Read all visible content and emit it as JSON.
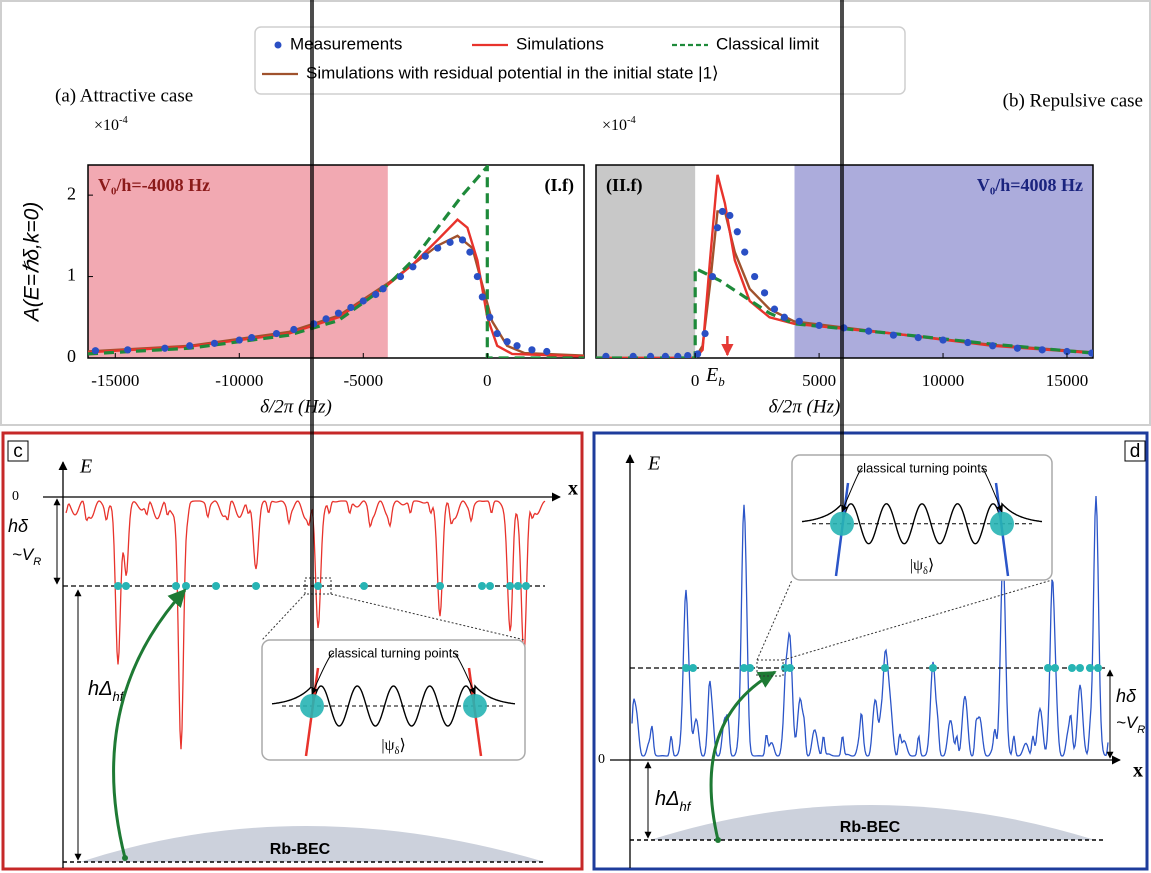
{
  "chart_data": [
    {
      "type": "line",
      "title": "(a) Attractive case",
      "xlabel": "δ/2π (Hz)",
      "ylabel": "A(E=ℏδ,k=0)",
      "y_scale_label": {
        "text": "×10",
        "sup": "-4"
      },
      "xlim": [
        -16100,
        3900
      ],
      "ylim": [
        0,
        2.37
      ],
      "xticks": [
        -15000,
        -10000,
        -5000,
        0
      ],
      "yticks": [
        0,
        1,
        2
      ],
      "regions": [
        {
          "from": -16100,
          "to": -4008,
          "color": "#f2a9b2",
          "label": "V₀/h=-4008 Hz",
          "label_color": "#8b1a1a"
        },
        {
          "from": -4008,
          "to": 3900,
          "color": "#ffffff",
          "label": "(I.f)",
          "label_color": "#000000"
        }
      ],
      "series": [
        {
          "name": "Measurements",
          "color": "#2a4fc4",
          "mode": "markers",
          "x": [
            -15800,
            -14500,
            -13000,
            -12000,
            -11000,
            -10000,
            -9500,
            -8500,
            -7800,
            -7000,
            -6500,
            -6000,
            -5500,
            -5000,
            -4500,
            -4200,
            -3500,
            -3000,
            -2500,
            -2000,
            -1500,
            -1000,
            -700,
            -400,
            -200,
            100,
            400,
            800,
            1200,
            1800,
            2400
          ],
          "values": [
            0.09,
            0.1,
            0.12,
            0.15,
            0.18,
            0.22,
            0.25,
            0.3,
            0.35,
            0.42,
            0.48,
            0.55,
            0.62,
            0.7,
            0.78,
            0.85,
            1.0,
            1.12,
            1.25,
            1.35,
            1.42,
            1.45,
            1.3,
            1.0,
            0.75,
            0.5,
            0.3,
            0.2,
            0.15,
            0.1,
            0.08
          ]
        },
        {
          "name": "Simulations",
          "color": "#e8332c",
          "mode": "line",
          "x": [
            -16100,
            -12000,
            -8000,
            -6000,
            -4000,
            -3000,
            -2000,
            -1200,
            -800,
            -400,
            0,
            400,
            1000,
            3900
          ],
          "values": [
            0.07,
            0.14,
            0.3,
            0.5,
            0.9,
            1.15,
            1.45,
            1.7,
            1.6,
            1.2,
            0.5,
            0.15,
            0.05,
            0.02
          ]
        },
        {
          "name": "Classical limit",
          "color": "#1e8a3a",
          "mode": "dashed",
          "x": [
            -16100,
            -12000,
            -8000,
            -6000,
            -4000,
            -3000,
            -2000,
            -1000,
            0,
            0,
            3900
          ],
          "values": [
            0.05,
            0.12,
            0.28,
            0.46,
            0.9,
            1.2,
            1.6,
            2.0,
            2.35,
            0,
            0
          ]
        },
        {
          "name": "Simulations with residual potential in the initial state |1⟩",
          "color": "#a0522d",
          "mode": "line",
          "x": [
            -16100,
            -12000,
            -8000,
            -6000,
            -4000,
            -3000,
            -2000,
            -1200,
            -600,
            -200,
            200,
            800,
            1500,
            3900
          ],
          "values": [
            0.08,
            0.15,
            0.32,
            0.52,
            0.92,
            1.15,
            1.38,
            1.5,
            1.35,
            0.9,
            0.45,
            0.15,
            0.06,
            0.03
          ]
        }
      ]
    },
    {
      "type": "line",
      "title": "(b) Repulsive case",
      "xlabel": "δ/2π (Hz)",
      "y_scale_label": {
        "text": "×10",
        "sup": "-4"
      },
      "xlim": [
        -4000,
        16050
      ],
      "ylim": [
        0,
        2.37
      ],
      "xticks": [
        0,
        5000,
        10000,
        15000
      ],
      "regions": [
        {
          "from": -4000,
          "to": 0,
          "color": "#c8c8c8",
          "label": "(II.f)",
          "label_color": "#000000"
        },
        {
          "from": 4008,
          "to": 16050,
          "color": "#acacdc",
          "label": "V₀/h=4008 Hz",
          "label_color": "#1a237e"
        }
      ],
      "annotations": [
        {
          "x": 1300,
          "text": "E",
          "sub": "b",
          "color": "#e53935"
        }
      ],
      "series": [
        {
          "name": "Measurements",
          "color": "#2a4fc4",
          "mode": "markers",
          "x": [
            -3600,
            -2500,
            -1800,
            -1200,
            -700,
            -300,
            100,
            400,
            700,
            900,
            1100,
            1400,
            1700,
            2000,
            2400,
            2800,
            3200,
            3600,
            4200,
            5000,
            6000,
            7000,
            8000,
            9000,
            10000,
            11000,
            12000,
            13000,
            14000,
            15000,
            16000
          ],
          "values": [
            0.02,
            0.02,
            0.02,
            0.02,
            0.02,
            0.03,
            0.05,
            0.3,
            1.0,
            1.6,
            1.8,
            1.75,
            1.55,
            1.3,
            1.0,
            0.8,
            0.6,
            0.5,
            0.45,
            0.4,
            0.37,
            0.33,
            0.28,
            0.25,
            0.22,
            0.19,
            0.15,
            0.12,
            0.1,
            0.08,
            0.06
          ]
        },
        {
          "name": "Simulations",
          "color": "#e8332c",
          "mode": "line",
          "x": [
            -4000,
            0,
            300,
            600,
            900,
            1200,
            1600,
            2200,
            3000,
            4000,
            8000,
            12000,
            16050
          ],
          "values": [
            0,
            0,
            0.1,
            1.2,
            2.25,
            1.9,
            1.2,
            0.7,
            0.5,
            0.42,
            0.3,
            0.15,
            0.06
          ]
        },
        {
          "name": "Classical limit",
          "color": "#1e8a3a",
          "mode": "dashed",
          "x": [
            -4000,
            0,
            0,
            1000,
            2000,
            3000,
            4000,
            8000,
            12000,
            16050
          ],
          "values": [
            0,
            0,
            1.1,
            0.95,
            0.75,
            0.55,
            0.42,
            0.3,
            0.17,
            0.06
          ]
        },
        {
          "name": "Simulations with residual potential in the initial state |1⟩",
          "color": "#a0522d",
          "mode": "line",
          "x": [
            -4000,
            0,
            300,
            600,
            900,
            1200,
            1600,
            2200,
            3000,
            4000,
            8000,
            12000,
            16050
          ],
          "values": [
            0,
            0,
            0.15,
            0.9,
            1.8,
            1.8,
            1.3,
            0.85,
            0.6,
            0.45,
            0.3,
            0.16,
            0.07
          ]
        }
      ]
    }
  ],
  "panels": [
    {
      "label": "c",
      "y_axis": "E",
      "x_axis": "x",
      "zero": "0",
      "gap": "hδ",
      "approx": {
        "text": "~V",
        "sub": "R"
      },
      "hyperfine": {
        "text": "hΔ",
        "sub": "hf"
      },
      "bec": "Rb-BEC",
      "inset": {
        "caption": "classical turning points",
        "state": {
          "text": "|ψ",
          "sub": "δ",
          "tail": "⟩"
        }
      }
    },
    {
      "label": "d",
      "y_axis": "E",
      "x_axis": "x",
      "zero": "0",
      "gap": "hδ",
      "approx": {
        "text": "~V",
        "sub": "R"
      },
      "hyperfine": {
        "text": "hΔ",
        "sub": "hf"
      },
      "bec": "Rb-BEC",
      "inset": {
        "caption": "classical turning points",
        "state": {
          "text": "|ψ",
          "sub": "δ",
          "tail": "⟩"
        }
      }
    }
  ]
}
